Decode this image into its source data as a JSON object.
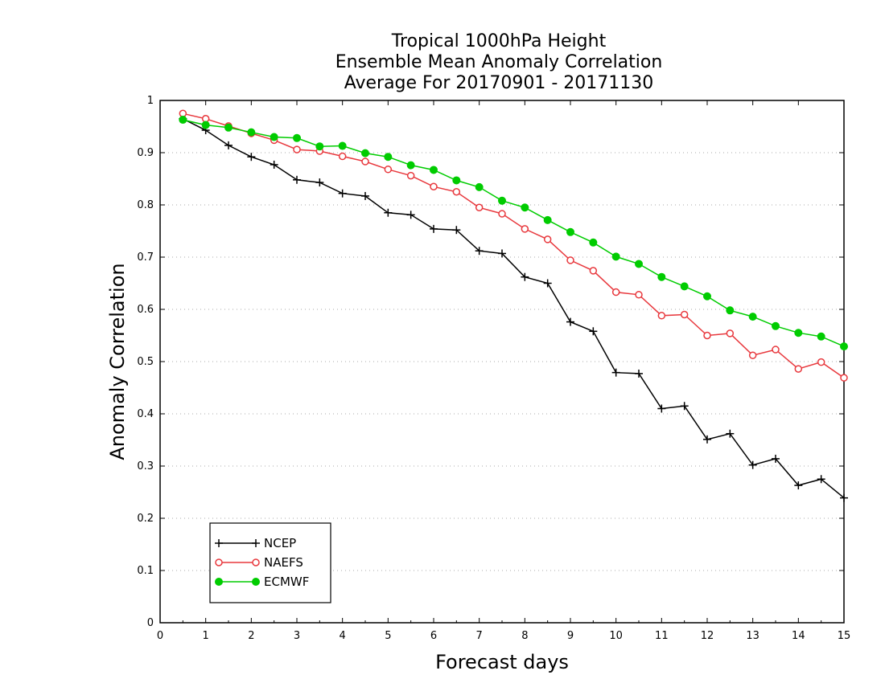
{
  "chart_data": {
    "type": "line",
    "title_lines": [
      "Tropical 1000hPa Height",
      "Ensemble Mean Anomaly Correlation",
      "Average For 20170901 - 20171130"
    ],
    "xlabel": "Forecast days",
    "ylabel": "Anomaly Correlation",
    "xlim": [
      0,
      15
    ],
    "ylim": [
      0,
      1
    ],
    "x_ticks": [
      0,
      1,
      2,
      3,
      4,
      5,
      6,
      7,
      8,
      9,
      10,
      11,
      12,
      13,
      14,
      15
    ],
    "y_ticks": [
      0,
      0.1,
      0.2,
      0.3,
      0.4,
      0.5,
      0.6,
      0.7,
      0.8,
      0.9,
      1
    ],
    "y_tick_labels": [
      "0",
      "0.1",
      "0.2",
      "0.3",
      "0.4",
      "0.5",
      "0.6",
      "0.7",
      "0.8",
      "0.9",
      "1"
    ],
    "grid": "horizontal dotted",
    "legend_position": "bottom-left",
    "x": [
      0.5,
      1,
      1.5,
      2,
      2.5,
      3,
      3.5,
      4,
      4.5,
      5,
      5.5,
      6,
      6.5,
      7,
      7.5,
      8,
      8.5,
      9,
      9.5,
      10,
      10.5,
      11,
      11.5,
      12,
      12.5,
      13,
      13.5,
      14,
      14.5,
      15
    ],
    "series": [
      {
        "name": "NCEP",
        "color": "#000000",
        "marker": "plus",
        "values": [
          0.965,
          0.943,
          0.914,
          0.892,
          0.877,
          0.848,
          0.843,
          0.822,
          0.817,
          0.785,
          0.781,
          0.754,
          0.752,
          0.712,
          0.707,
          0.662,
          0.65,
          0.576,
          0.558,
          0.479,
          0.477,
          0.41,
          0.415,
          0.351,
          0.362,
          0.302,
          0.314,
          0.263,
          0.275,
          0.239
        ]
      },
      {
        "name": "NAEFS",
        "color": "#e8383d",
        "marker": "open-circle",
        "values": [
          0.975,
          0.965,
          0.951,
          0.937,
          0.924,
          0.906,
          0.903,
          0.893,
          0.883,
          0.868,
          0.856,
          0.835,
          0.825,
          0.795,
          0.783,
          0.754,
          0.734,
          0.694,
          0.674,
          0.633,
          0.628,
          0.588,
          0.59,
          0.55,
          0.554,
          0.512,
          0.523,
          0.486,
          0.499,
          0.469
        ]
      },
      {
        "name": "ECMWF",
        "color": "#00cc00",
        "marker": "filled-circle",
        "values": [
          0.963,
          0.953,
          0.948,
          0.939,
          0.93,
          0.928,
          0.912,
          0.913,
          0.899,
          0.892,
          0.876,
          0.867,
          0.847,
          0.834,
          0.808,
          0.795,
          0.771,
          0.748,
          0.728,
          0.701,
          0.687,
          0.662,
          0.644,
          0.625,
          0.598,
          0.586,
          0.568,
          0.555,
          0.548,
          0.529
        ]
      }
    ]
  }
}
